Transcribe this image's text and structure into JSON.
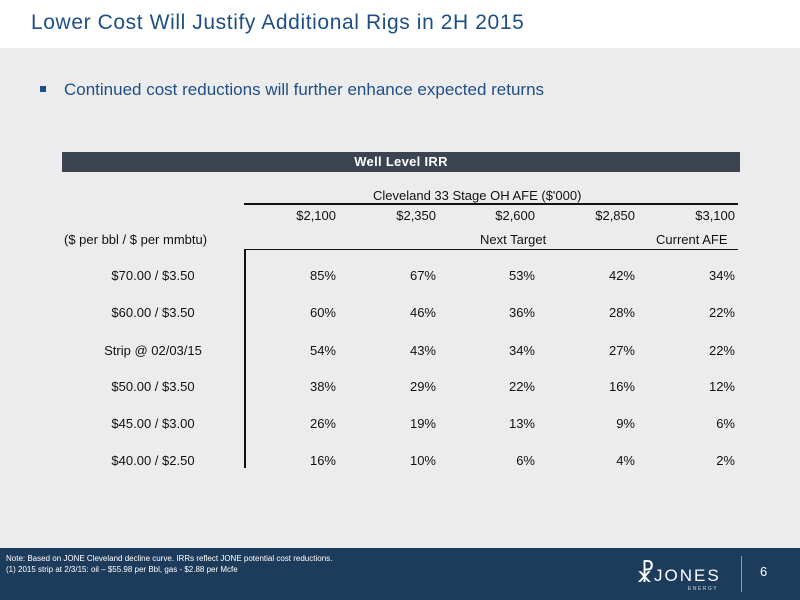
{
  "slide": {
    "title": "Lower Cost Will Justify Additional Rigs in 2H 2015",
    "bullet": "Continued cost reductions will further enhance expected returns",
    "page_number": "6"
  },
  "table": {
    "header": "Well Level IRR",
    "afe_caption": "Cleveland 33 Stage OH AFE ($'000)",
    "columns": [
      "$2,100",
      "$2,350",
      "$2,600",
      "$2,850",
      "$3,100"
    ],
    "row_header_label": "($ per bbl /  $ per mmbtu)",
    "next_target_label": "Next Target",
    "current_afe_label": "Current AFE",
    "rows": [
      {
        "label": "$70.00 / $3.50",
        "values": [
          "85%",
          "67%",
          "53%",
          "42%",
          "34%"
        ]
      },
      {
        "label": "$60.00 / $3.50",
        "values": [
          "60%",
          "46%",
          "36%",
          "28%",
          "22%"
        ]
      },
      {
        "label": "Strip @ 02/03/15",
        "values": [
          "54%",
          "43%",
          "34%",
          "27%",
          "22%"
        ]
      },
      {
        "label": "$50.00 / $3.50",
        "values": [
          "38%",
          "29%",
          "22%",
          "16%",
          "12%"
        ]
      },
      {
        "label": "$45.00 / $3.00",
        "values": [
          "26%",
          "19%",
          "13%",
          "9%",
          "6%"
        ]
      },
      {
        "label": "$40.00 / $2.50",
        "values": [
          "16%",
          "10%",
          "6%",
          "4%",
          "2%"
        ]
      }
    ]
  },
  "footer": {
    "note_line1": "Note: Based on JONE Cleveland decline curve. IRRs reflect JONE potential cost reductions.",
    "note_line2": "(1) 2015 strip at 2/3/15: oil – $55.98 per Bbl, gas - $2.88 per Mcfe",
    "logo_text": "JONES",
    "logo_sub": "ENERGY"
  }
}
